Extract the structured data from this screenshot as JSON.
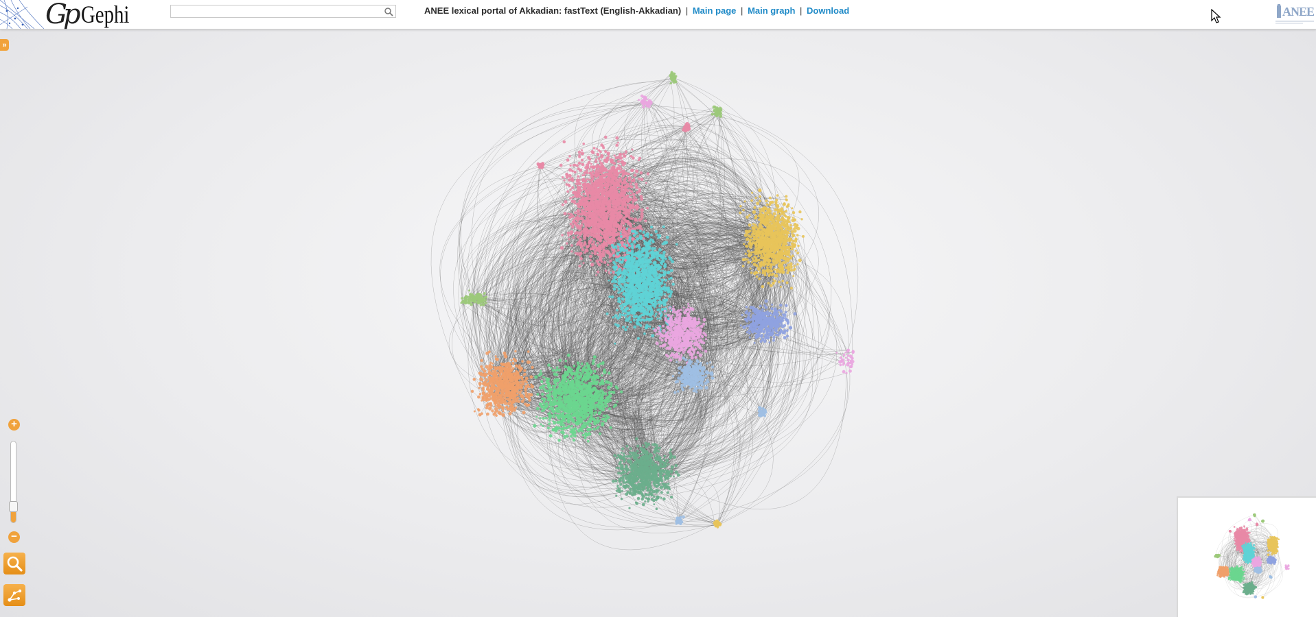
{
  "header": {
    "logo_text": "Gephi",
    "logo_glyph": "Gp",
    "brand_text": "ANEE",
    "title": "ANEE lexical portal of Akkadian: fastText (English-Akkadian)",
    "separator": "|",
    "links": [
      {
        "label": "Main page"
      },
      {
        "label": "Main graph"
      },
      {
        "label": "Download"
      }
    ],
    "link_color": "#1f8ac7"
  },
  "search": {
    "placeholder": "",
    "value": "",
    "icon": "magnifier-icon"
  },
  "sidebar_toggle": {
    "label": "»",
    "icon": "double-chevron-right-icon"
  },
  "zoom": {
    "plus_label": "+",
    "minus_label": "−",
    "level": 0.2,
    "accent": "#f0a23c"
  },
  "tools": [
    {
      "name": "search-tool",
      "icon": "magnifier-icon"
    },
    {
      "name": "graph-tool",
      "icon": "nodes-edges-icon"
    }
  ],
  "graph": {
    "clusters": [
      {
        "color": "#e88aa6"
      },
      {
        "color": "#5fd3d6"
      },
      {
        "color": "#6bd68f"
      },
      {
        "color": "#f0a06a"
      },
      {
        "color": "#e8c45a"
      },
      {
        "color": "#8fa2e0"
      },
      {
        "color": "#eaa6e0"
      },
      {
        "color": "#9cc97a"
      },
      {
        "color": "#6bae8c"
      },
      {
        "color": "#9fbfe3"
      }
    ],
    "edge_color": "#555555"
  }
}
